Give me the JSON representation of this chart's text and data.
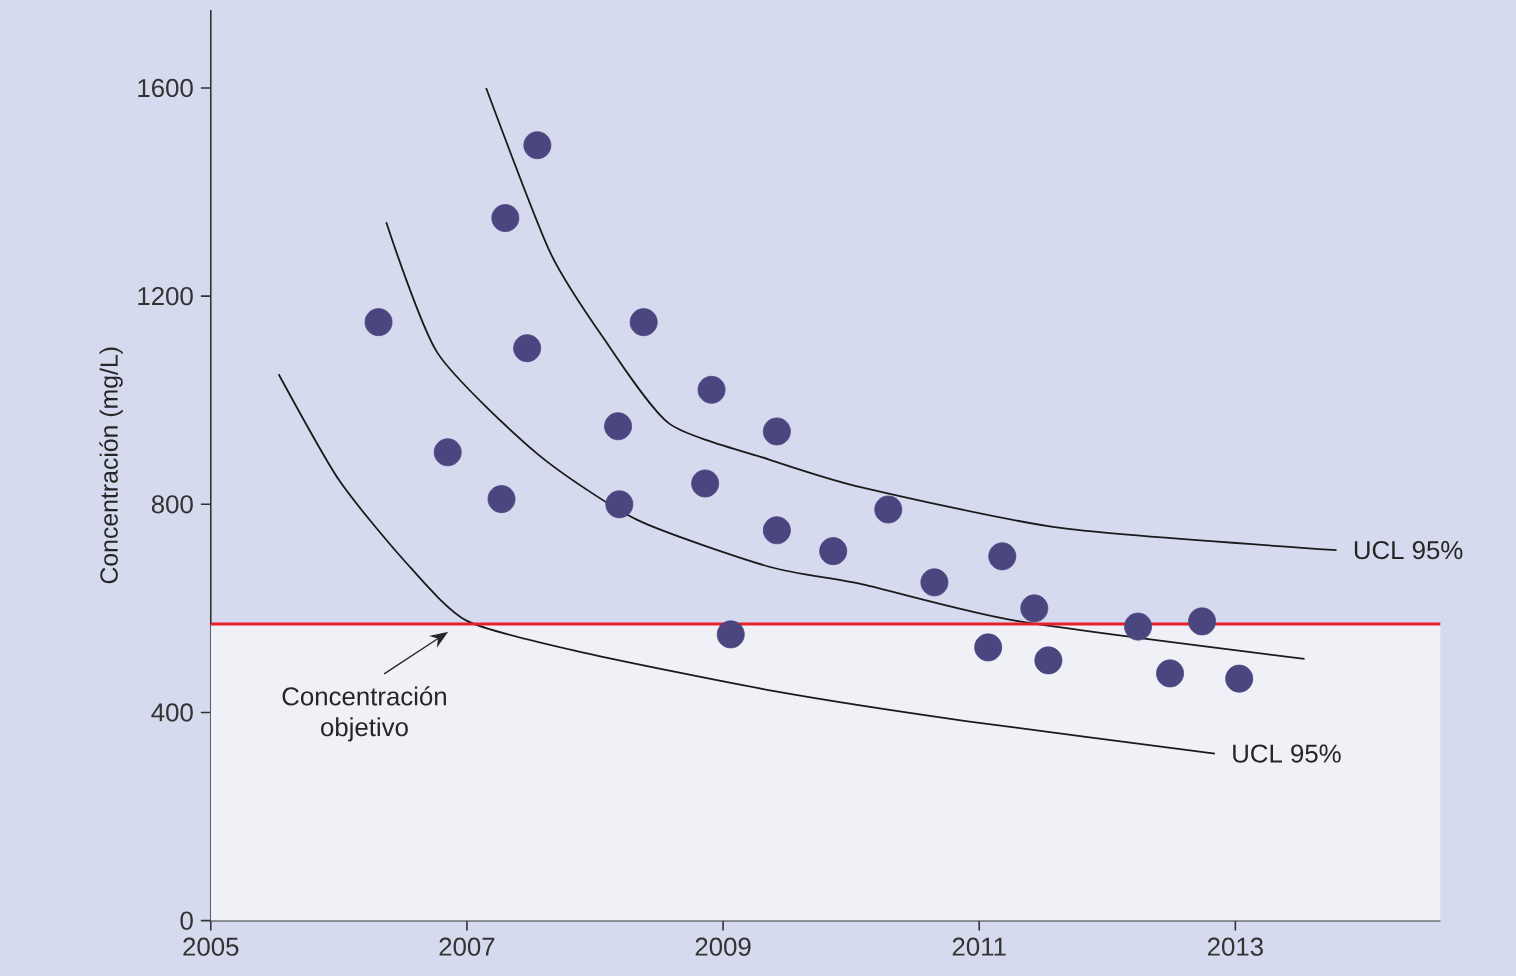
{
  "chart_data": {
    "type": "scatter",
    "ylabel": "Concentración (mg/L)",
    "xlim": [
      2005,
      2014.6
    ],
    "ylim": [
      0,
      1750
    ],
    "xticks": [
      2005,
      2007,
      2009,
      2011,
      2013
    ],
    "yticks": [
      0,
      400,
      800,
      1200,
      1600
    ],
    "series": [
      {
        "color": "#4b4580",
        "marker": "circle",
        "x": [
          2006.31,
          2006.85,
          2007.3,
          2007.27,
          2007.47,
          2007.55,
          2008.18,
          2008.19,
          2008.38,
          2008.91,
          2008.86,
          2009.42,
          2009.42,
          2009.06,
          2009.86,
          2010.29,
          2010.65,
          2011.18,
          2011.07,
          2011.43,
          2011.54,
          2012.24,
          2012.49,
          2012.74,
          2013.03
        ],
        "values": [
          1150,
          900,
          1350,
          810,
          1100,
          1490,
          950,
          800,
          1150,
          1020,
          840,
          940,
          750,
          550,
          710,
          790,
          650,
          700,
          525,
          600,
          500,
          565,
          475,
          575,
          465
        ]
      },
      {
        "type": "line",
        "name": "UCL 95%",
        "color": "#1a1a1a",
        "marker": "none",
        "x": [
          2007.15,
          2007.65,
          2008.07,
          2008.58,
          2009.36,
          2010.09,
          2011.65,
          2013.79
        ],
        "values": [
          1600,
          1284,
          1118,
          955,
          886,
          832,
          754,
          712
        ]
      },
      {
        "type": "line",
        "color": "#1a1a1a",
        "marker": "none",
        "x": [
          2006.37,
          2006.77,
          2007.55,
          2008.33,
          2009.36,
          2010.09,
          2011.29,
          2013.54
        ],
        "values": [
          1342,
          1091,
          897,
          770,
          680,
          646,
          576,
          503
        ]
      },
      {
        "type": "line",
        "name": "UCL 95%",
        "color": "#1a1a1a",
        "marker": "none",
        "x": [
          2005.53,
          2006.0,
          2006.51,
          2007.0,
          2007.91,
          2009.4,
          2010.91,
          2012.84
        ],
        "values": [
          1050,
          847,
          692,
          576,
          515,
          441,
          383,
          321
        ]
      }
    ],
    "ref_lines": [
      {
        "axis": "y",
        "value": 570,
        "color": "#e8202a"
      }
    ],
    "bands": [
      {
        "axis": "y",
        "from": 0,
        "to": 570,
        "color": "#f0f1f7"
      }
    ],
    "annotations": [
      "Concentración objetivo"
    ]
  }
}
